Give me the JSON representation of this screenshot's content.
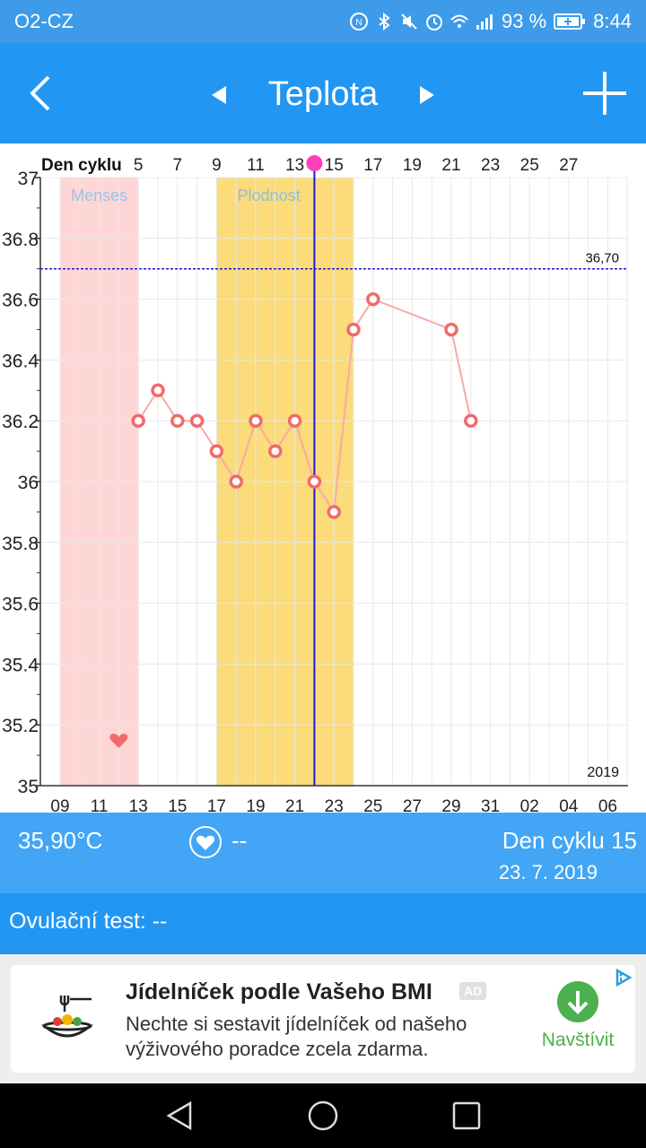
{
  "status": {
    "carrier": "O2-CZ",
    "battery": "93 %",
    "time": "8:44",
    "icons": [
      "nfc-icon",
      "bluetooth-icon",
      "mute-icon",
      "alarm-icon",
      "wifi-icon",
      "signal-icon",
      "battery-icon"
    ]
  },
  "appbar": {
    "title": "Teplota",
    "icons": {
      "back": "back-arrow-icon",
      "prev": "triangle-left-icon",
      "next": "triangle-right-icon",
      "add": "plus-icon"
    }
  },
  "chart_data": {
    "type": "line",
    "title": "",
    "top_axis_label": "Den cyklu",
    "top_axis_ticks": [
      "5",
      "7",
      "9",
      "11",
      "13",
      "15",
      "17",
      "19",
      "21",
      "23",
      "25",
      "27"
    ],
    "x_tick_labels": [
      "09",
      "11",
      "13",
      "15",
      "17",
      "19",
      "21",
      "23",
      "25",
      "27",
      "29",
      "31",
      "02",
      "04",
      "06"
    ],
    "y_tick_labels": [
      "35",
      "35.2",
      "35.4",
      "35.6",
      "35.8",
      "36",
      "36.2",
      "36.4",
      "36.6",
      "36.8",
      "37"
    ],
    "ylim": [
      35,
      37
    ],
    "x_range_days": [
      9,
      39
    ],
    "year_label": "2019",
    "threshold": {
      "value": 36.7,
      "label": "36,70",
      "color": "#1a1ad6"
    },
    "bands": [
      {
        "label": "Menses",
        "from_day": 9,
        "to_day": 13,
        "color": "#ffd6d6",
        "text_color": "#9ac4e6"
      },
      {
        "label": "Plodnost",
        "from_day": 17,
        "to_day": 24,
        "color": "#fbdb7a",
        "text_color": "#8fc1d8"
      }
    ],
    "heart_marker_day": 12,
    "current_day_line": 22,
    "series": [
      {
        "color": "#f26a6a",
        "points": [
          {
            "x": 13,
            "y": 36.2
          },
          {
            "x": 14,
            "y": 36.3
          },
          {
            "x": 15,
            "y": 36.2
          },
          {
            "x": 16,
            "y": 36.2
          },
          {
            "x": 17,
            "y": 36.1
          },
          {
            "x": 18,
            "y": 36.0
          },
          {
            "x": 19,
            "y": 36.2
          },
          {
            "x": 20,
            "y": 36.1
          },
          {
            "x": 21,
            "y": 36.2
          },
          {
            "x": 22,
            "y": 36.0
          },
          {
            "x": 23,
            "y": 35.9
          },
          {
            "x": 24,
            "y": 36.5
          },
          {
            "x": 25,
            "y": 36.6
          },
          {
            "x": 29,
            "y": 36.5
          },
          {
            "x": 30,
            "y": 36.2
          }
        ]
      }
    ],
    "grid": true
  },
  "info": {
    "temperature": "35,90°C",
    "heart_value": "--",
    "cycle_day": "Den cyklu 15",
    "date": "23. 7. 2019"
  },
  "ovulation": {
    "label": "Ovulační test: --"
  },
  "ad": {
    "title": "Jídelníček podle Vašeho BMI",
    "badge": "AD",
    "text": "Nechte si sestavit jídelníček od našeho výživového poradce zcela zdarma.",
    "cta": "Navštívit"
  }
}
